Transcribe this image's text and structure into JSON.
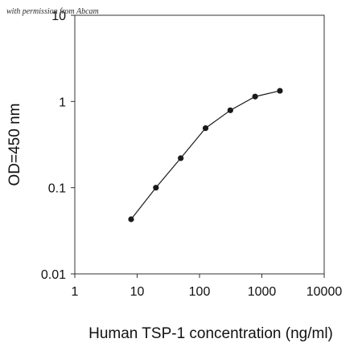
{
  "watermark": "with permission from Abcam",
  "chart_data": {
    "type": "line",
    "xlabel": "Human TSP-1 concentration (ng/ml)",
    "ylabel": "OD=450 nm",
    "x_scale": "log",
    "y_scale": "log",
    "xlim": [
      1,
      10000
    ],
    "ylim": [
      0.01,
      10
    ],
    "x_ticks": [
      1,
      10,
      100,
      1000,
      10000
    ],
    "x_tick_labels": [
      "1",
      "10",
      "100",
      "1000",
      "10000"
    ],
    "y_ticks": [
      0.01,
      0.1,
      1,
      10
    ],
    "y_tick_labels": [
      "0.01",
      "0.1",
      "1",
      "10"
    ],
    "grid": false,
    "legend": "none",
    "marker_color": "#1a1a1a",
    "series": [
      {
        "x": [
          8,
          20,
          50,
          125,
          312,
          780,
          1950
        ],
        "y": [
          0.043,
          0.1,
          0.22,
          0.49,
          0.79,
          1.14,
          1.33
        ]
      }
    ]
  }
}
